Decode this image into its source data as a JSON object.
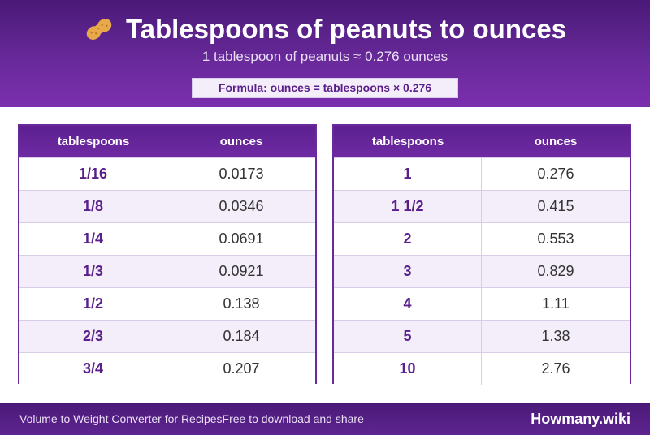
{
  "header": {
    "title": "Tablespoons of peanuts to ounces",
    "icon": "peanut-icon",
    "subtitle": "1 tablespoon of peanuts ≈ 0.276 ounces",
    "formula": "Formula: ounces = tablespoons × 0.276"
  },
  "tables": [
    {
      "headers": [
        "tablespoons",
        "ounces"
      ],
      "rows": [
        [
          "1/16",
          "0.0173"
        ],
        [
          "1/8",
          "0.0346"
        ],
        [
          "1/4",
          "0.0691"
        ],
        [
          "1/3",
          "0.0921"
        ],
        [
          "1/2",
          "0.138"
        ],
        [
          "2/3",
          "0.184"
        ],
        [
          "3/4",
          "0.207"
        ]
      ]
    },
    {
      "headers": [
        "tablespoons",
        "ounces"
      ],
      "rows": [
        [
          "1",
          "0.276"
        ],
        [
          "1 1/2",
          "0.415"
        ],
        [
          "2",
          "0.553"
        ],
        [
          "3",
          "0.829"
        ],
        [
          "4",
          "1.11"
        ],
        [
          "5",
          "1.38"
        ],
        [
          "10",
          "2.76"
        ]
      ]
    }
  ],
  "footer": {
    "left_text_1": "Volume to Weight Converter for Recipes",
    "left_text_2": "Free to download and share",
    "brand": "Howmany.wiki"
  },
  "colors": {
    "brand_purple": "#6a2a9c",
    "header_dark": "#4a1a78",
    "accent_text": "#5a1f8a"
  }
}
